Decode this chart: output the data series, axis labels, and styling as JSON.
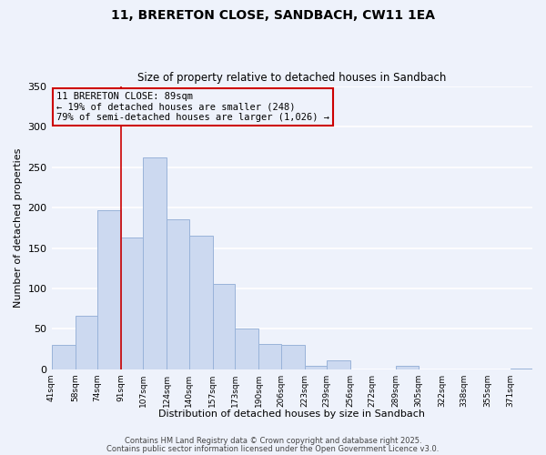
{
  "title": "11, BRERETON CLOSE, SANDBACH, CW11 1EA",
  "subtitle": "Size of property relative to detached houses in Sandbach",
  "xlabel": "Distribution of detached houses by size in Sandbach",
  "ylabel": "Number of detached properties",
  "bar_color": "#ccd9f0",
  "bar_edge_color": "#99b3d9",
  "bin_labels": [
    "41sqm",
    "58sqm",
    "74sqm",
    "91sqm",
    "107sqm",
    "124sqm",
    "140sqm",
    "157sqm",
    "173sqm",
    "190sqm",
    "206sqm",
    "223sqm",
    "239sqm",
    "256sqm",
    "272sqm",
    "289sqm",
    "305sqm",
    "322sqm",
    "338sqm",
    "355sqm",
    "371sqm"
  ],
  "bar_heights": [
    30,
    66,
    197,
    163,
    262,
    185,
    165,
    106,
    50,
    32,
    30,
    5,
    11,
    0,
    0,
    5,
    0,
    0,
    0,
    0,
    1
  ],
  "bin_edges": [
    41,
    58,
    74,
    91,
    107,
    124,
    140,
    157,
    173,
    190,
    206,
    223,
    239,
    256,
    272,
    289,
    305,
    322,
    338,
    355,
    371,
    387
  ],
  "vline_x": 91,
  "vline_color": "#cc0000",
  "annotation_line1": "11 BRERETON CLOSE: 89sqm",
  "annotation_line2": "← 19% of detached houses are smaller (248)",
  "annotation_line3": "79% of semi-detached houses are larger (1,026) →",
  "annotation_box_edge": "#cc0000",
  "ylim": [
    0,
    350
  ],
  "yticks": [
    0,
    50,
    100,
    150,
    200,
    250,
    300,
    350
  ],
  "footer1": "Contains HM Land Registry data © Crown copyright and database right 2025.",
  "footer2": "Contains public sector information licensed under the Open Government Licence v3.0.",
  "background_color": "#eef2fb",
  "grid_color": "#ffffff"
}
